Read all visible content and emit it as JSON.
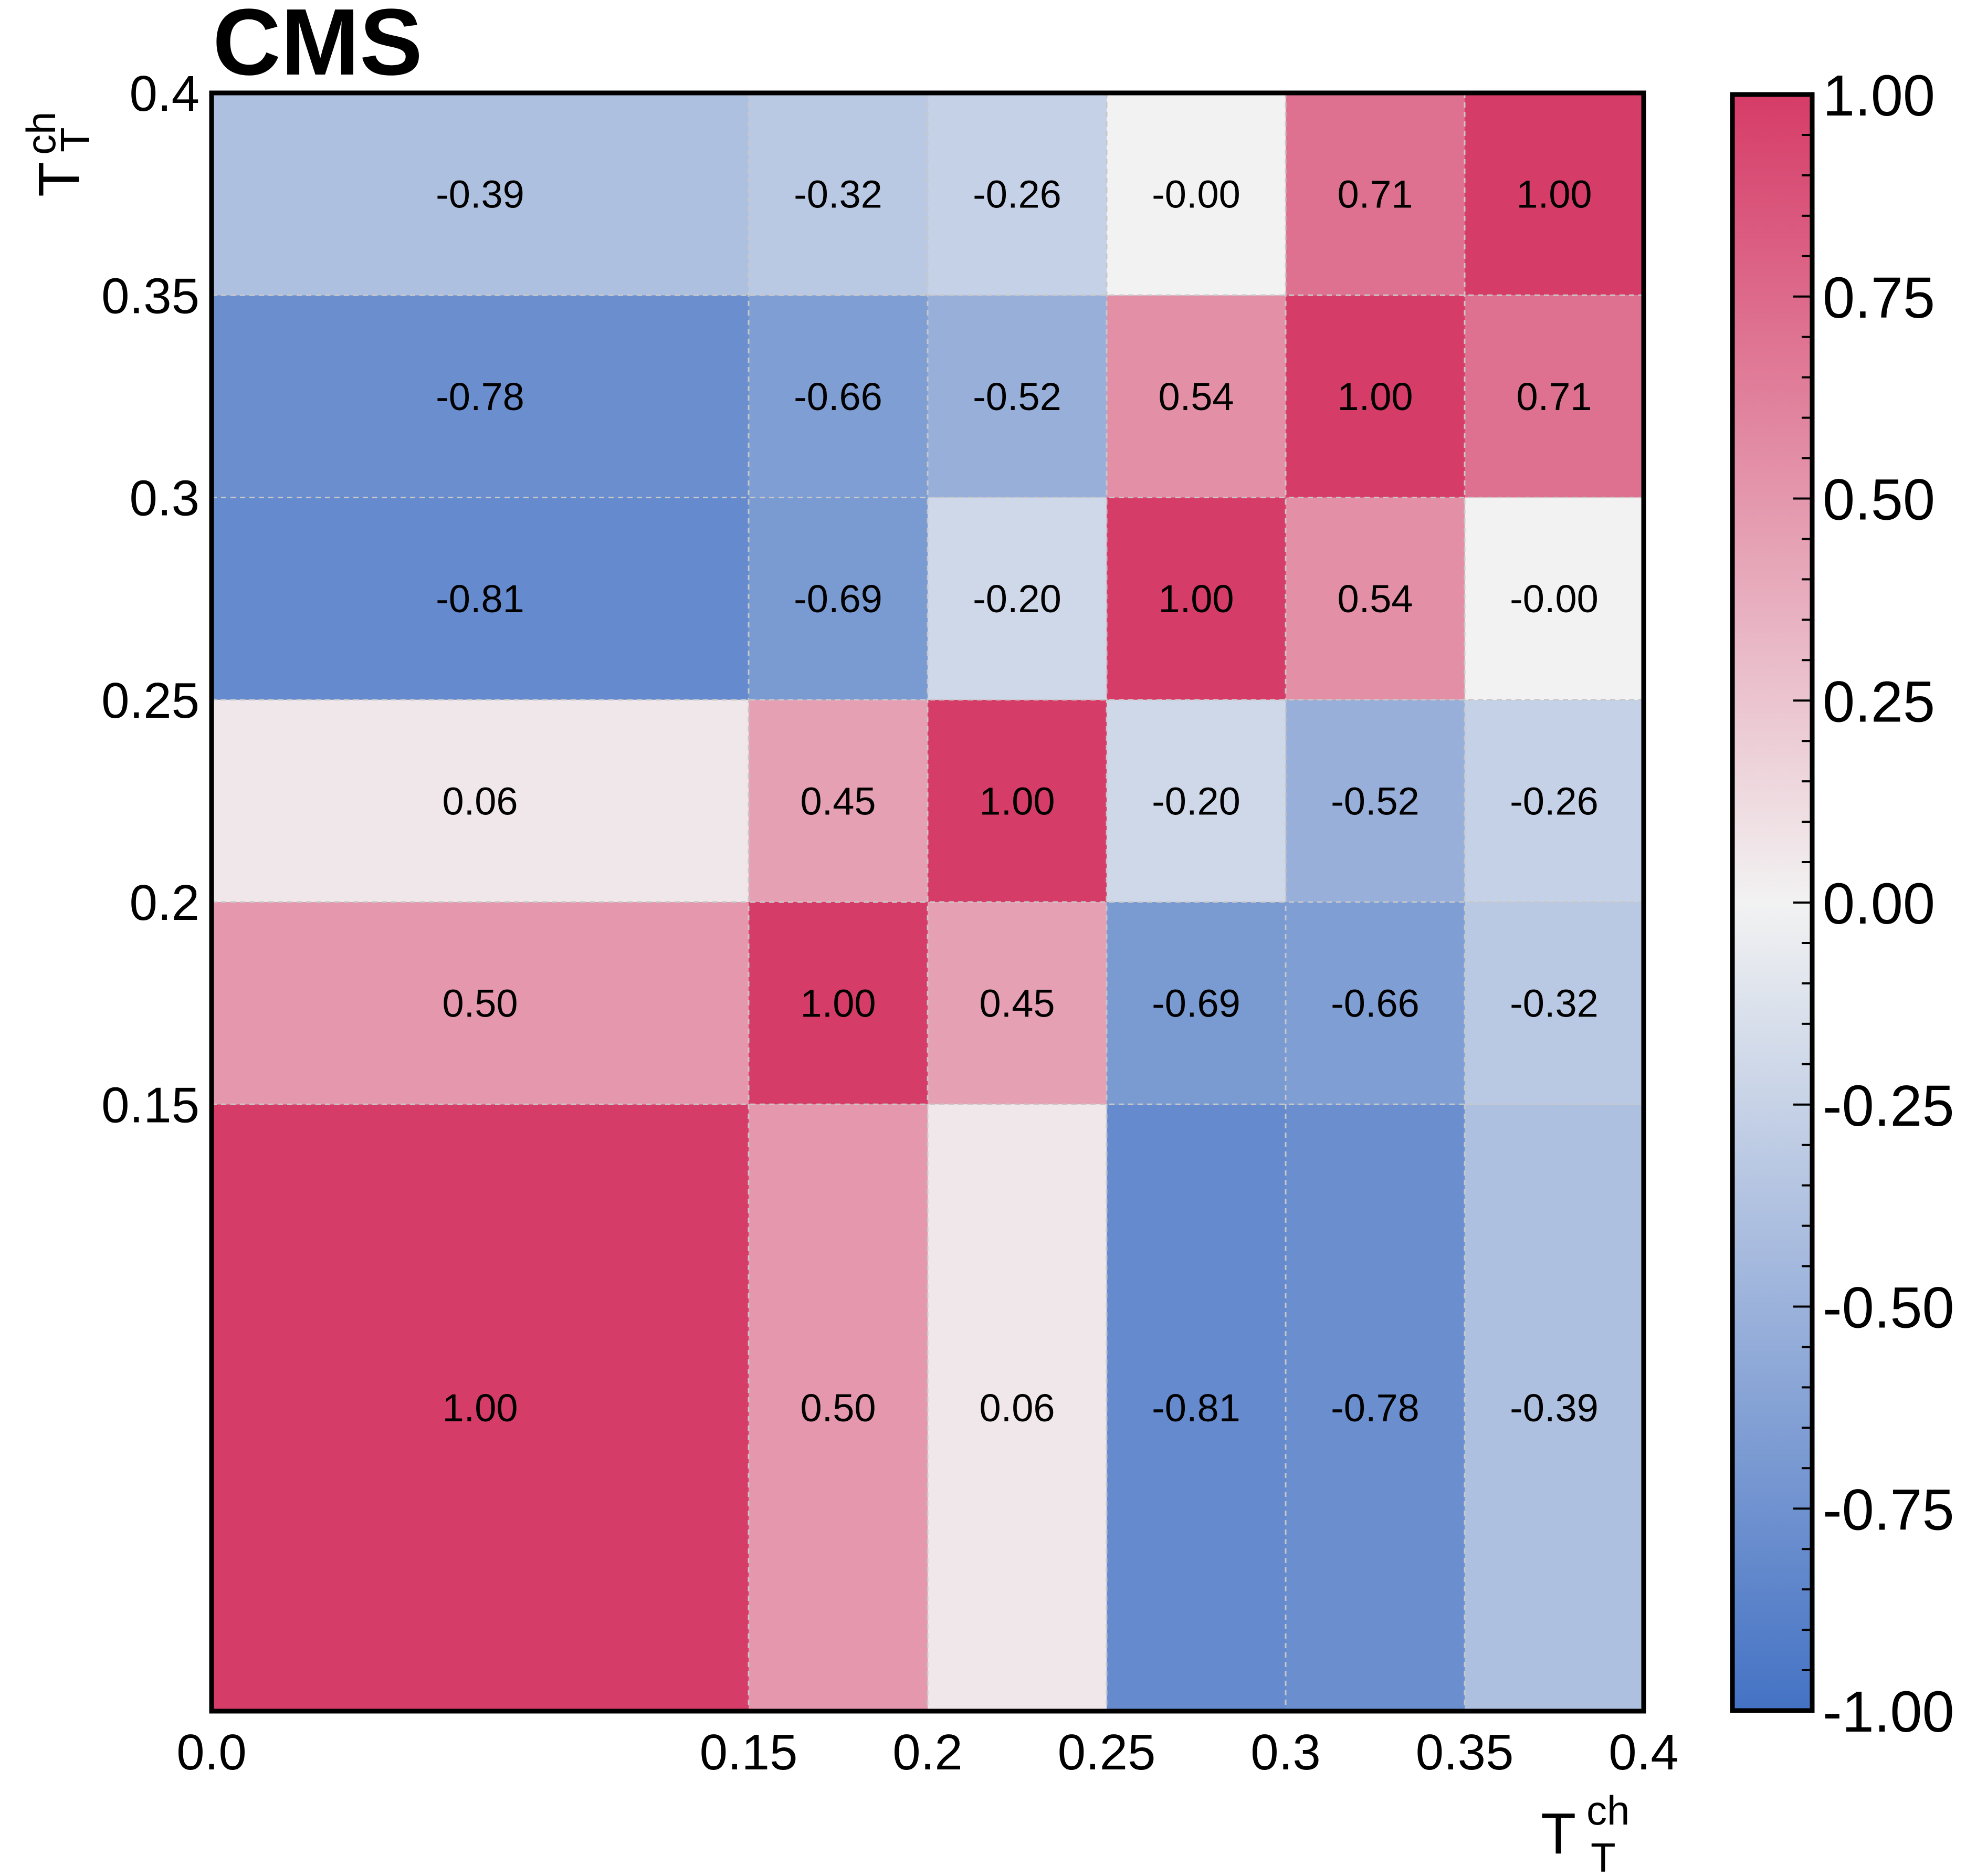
{
  "chart_data": {
    "type": "heatmap",
    "title": "CMS",
    "xlabel": {
      "main": "T",
      "sup": "ch",
      "sub": "T"
    },
    "ylabel": {
      "main": "T",
      "sup": "ch",
      "sub": "T"
    },
    "x_bin_edges": [
      0.0,
      0.15,
      0.2,
      0.25,
      0.3,
      0.35,
      0.4
    ],
    "y_bin_edges": [
      0.0,
      0.15,
      0.2,
      0.25,
      0.3,
      0.35,
      0.4
    ],
    "x_tick_labels": [
      "0.0",
      "0.15",
      "0.2",
      "0.25",
      "0.3",
      "0.35",
      "0.4"
    ],
    "y_tick_labels": [
      "0.15",
      "0.2",
      "0.25",
      "0.3",
      "0.35",
      "0.4"
    ],
    "y_tick_values": [
      0.15,
      0.2,
      0.25,
      0.3,
      0.35,
      0.4
    ],
    "xlim": [
      0.0,
      0.4
    ],
    "ylim": [
      0.0,
      0.4
    ],
    "matrix_rows_bottom_to_top": [
      [
        "1.00",
        "0.50",
        "0.06",
        "-0.81",
        "-0.78",
        "-0.39"
      ],
      [
        "0.50",
        "1.00",
        "0.45",
        "-0.69",
        "-0.66",
        "-0.32"
      ],
      [
        "0.06",
        "0.45",
        "1.00",
        "-0.20",
        "-0.52",
        "-0.26"
      ],
      [
        "-0.81",
        "-0.69",
        "-0.20",
        "1.00",
        "0.54",
        "-0.00"
      ],
      [
        "-0.78",
        "-0.66",
        "-0.52",
        "0.54",
        "1.00",
        "0.71"
      ],
      [
        "-0.39",
        "-0.32",
        "-0.26",
        "-0.00",
        "0.71",
        "1.00"
      ]
    ],
    "colorbar": {
      "range": [
        -1.0,
        1.0
      ],
      "tick_labels": [
        "-1.00",
        "-0.75",
        "-0.50",
        "-0.25",
        "0.00",
        "0.25",
        "0.50",
        "0.75",
        "1.00"
      ],
      "tick_values": [
        -1.0,
        -0.75,
        -0.5,
        -0.25,
        0.0,
        0.25,
        0.5,
        0.75,
        1.0
      ],
      "color_min": "#4472c4",
      "color_mid": "#f2f2f2",
      "color_max": "#d63c68"
    },
    "grid": "dashed"
  }
}
